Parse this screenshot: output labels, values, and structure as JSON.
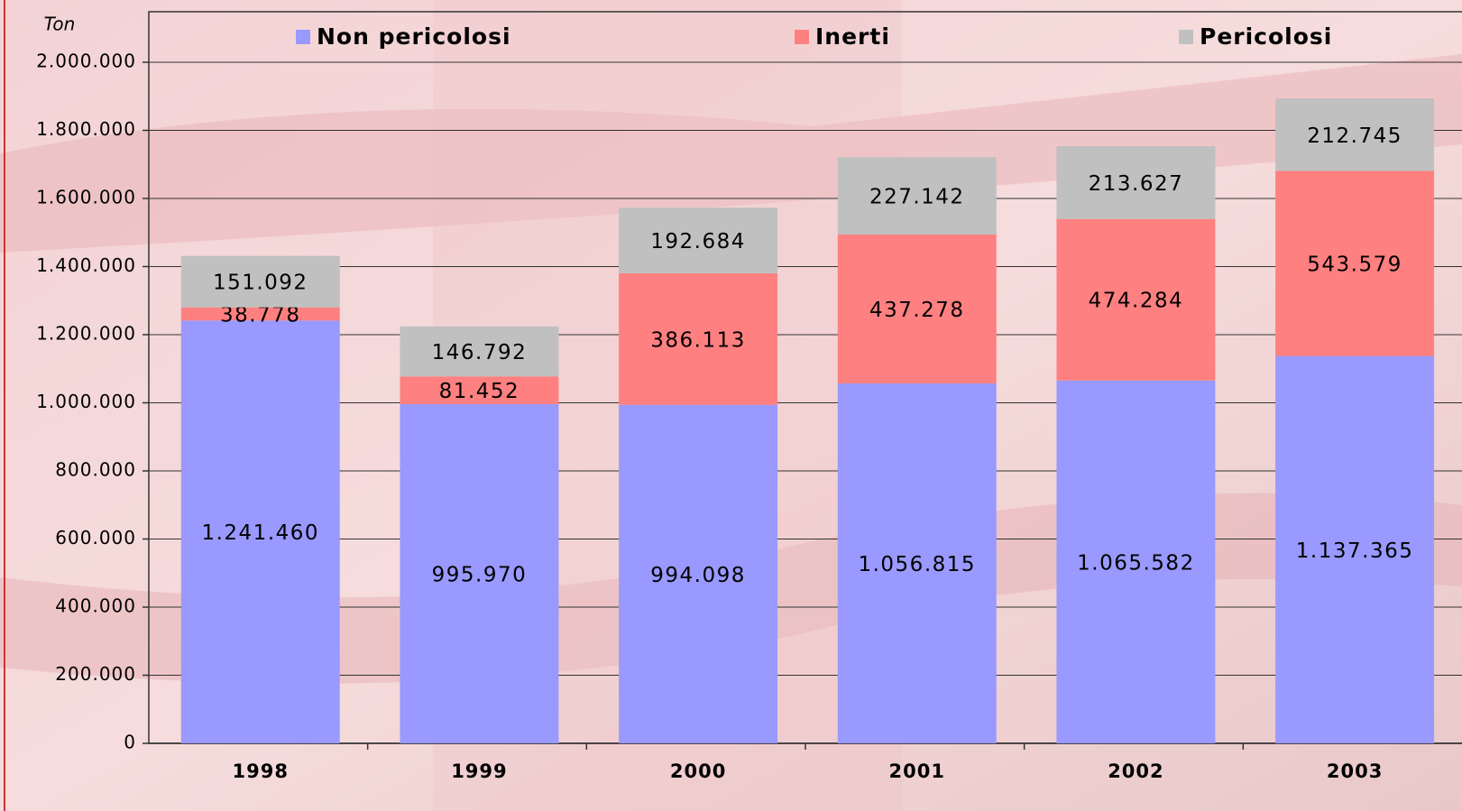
{
  "chart_data": {
    "type": "stacked_bar",
    "y_label": "Ton",
    "categories": [
      "1998",
      "1999",
      "2000",
      "2001",
      "2002",
      "2003"
    ],
    "series": [
      {
        "name": "Non pericolosi",
        "color": "#9999ff",
        "values": [
          1241460,
          995970,
          994098,
          1056815,
          1065582,
          1137365
        ],
        "value_labels": [
          "1.241.460",
          "995.970",
          "994.098",
          "1.056.815",
          "1.065.582",
          "1.137.365"
        ]
      },
      {
        "name": "Inerti",
        "color": "#ff8080",
        "values": [
          38778,
          81452,
          386113,
          437278,
          474284,
          543579
        ],
        "value_labels": [
          "38.778",
          "81.452",
          "386.113",
          "437.278",
          "474.284",
          "543.579"
        ]
      },
      {
        "name": "Pericolosi",
        "color": "#c0c0c0",
        "values": [
          151092,
          146792,
          192684,
          227142,
          213627,
          212745
        ],
        "value_labels": [
          "151.092",
          "146.792",
          "192.684",
          "227.142",
          "213.627",
          "212.745"
        ]
      }
    ],
    "ylim": [
      0,
      2000000
    ],
    "yticks": [
      0,
      {
        "value": 200000,
        "label": "200.000"
      },
      {
        "value": 400000,
        "label": "400.000"
      },
      {
        "value": 600000,
        "label": "600.000"
      },
      {
        "value": 800000,
        "label": "800.000"
      },
      {
        "value": 1000000,
        "label": "1.000.000"
      },
      {
        "value": 1200000,
        "label": "1.200.000"
      },
      {
        "value": 1400000,
        "label": "1.400.000"
      },
      {
        "value": 1600000,
        "label": "1.600.000"
      },
      {
        "value": 1800000,
        "label": "1.800.000"
      },
      {
        "value": 2000000,
        "label": "2.000.000"
      }
    ],
    "grid": true,
    "legend": "top"
  }
}
